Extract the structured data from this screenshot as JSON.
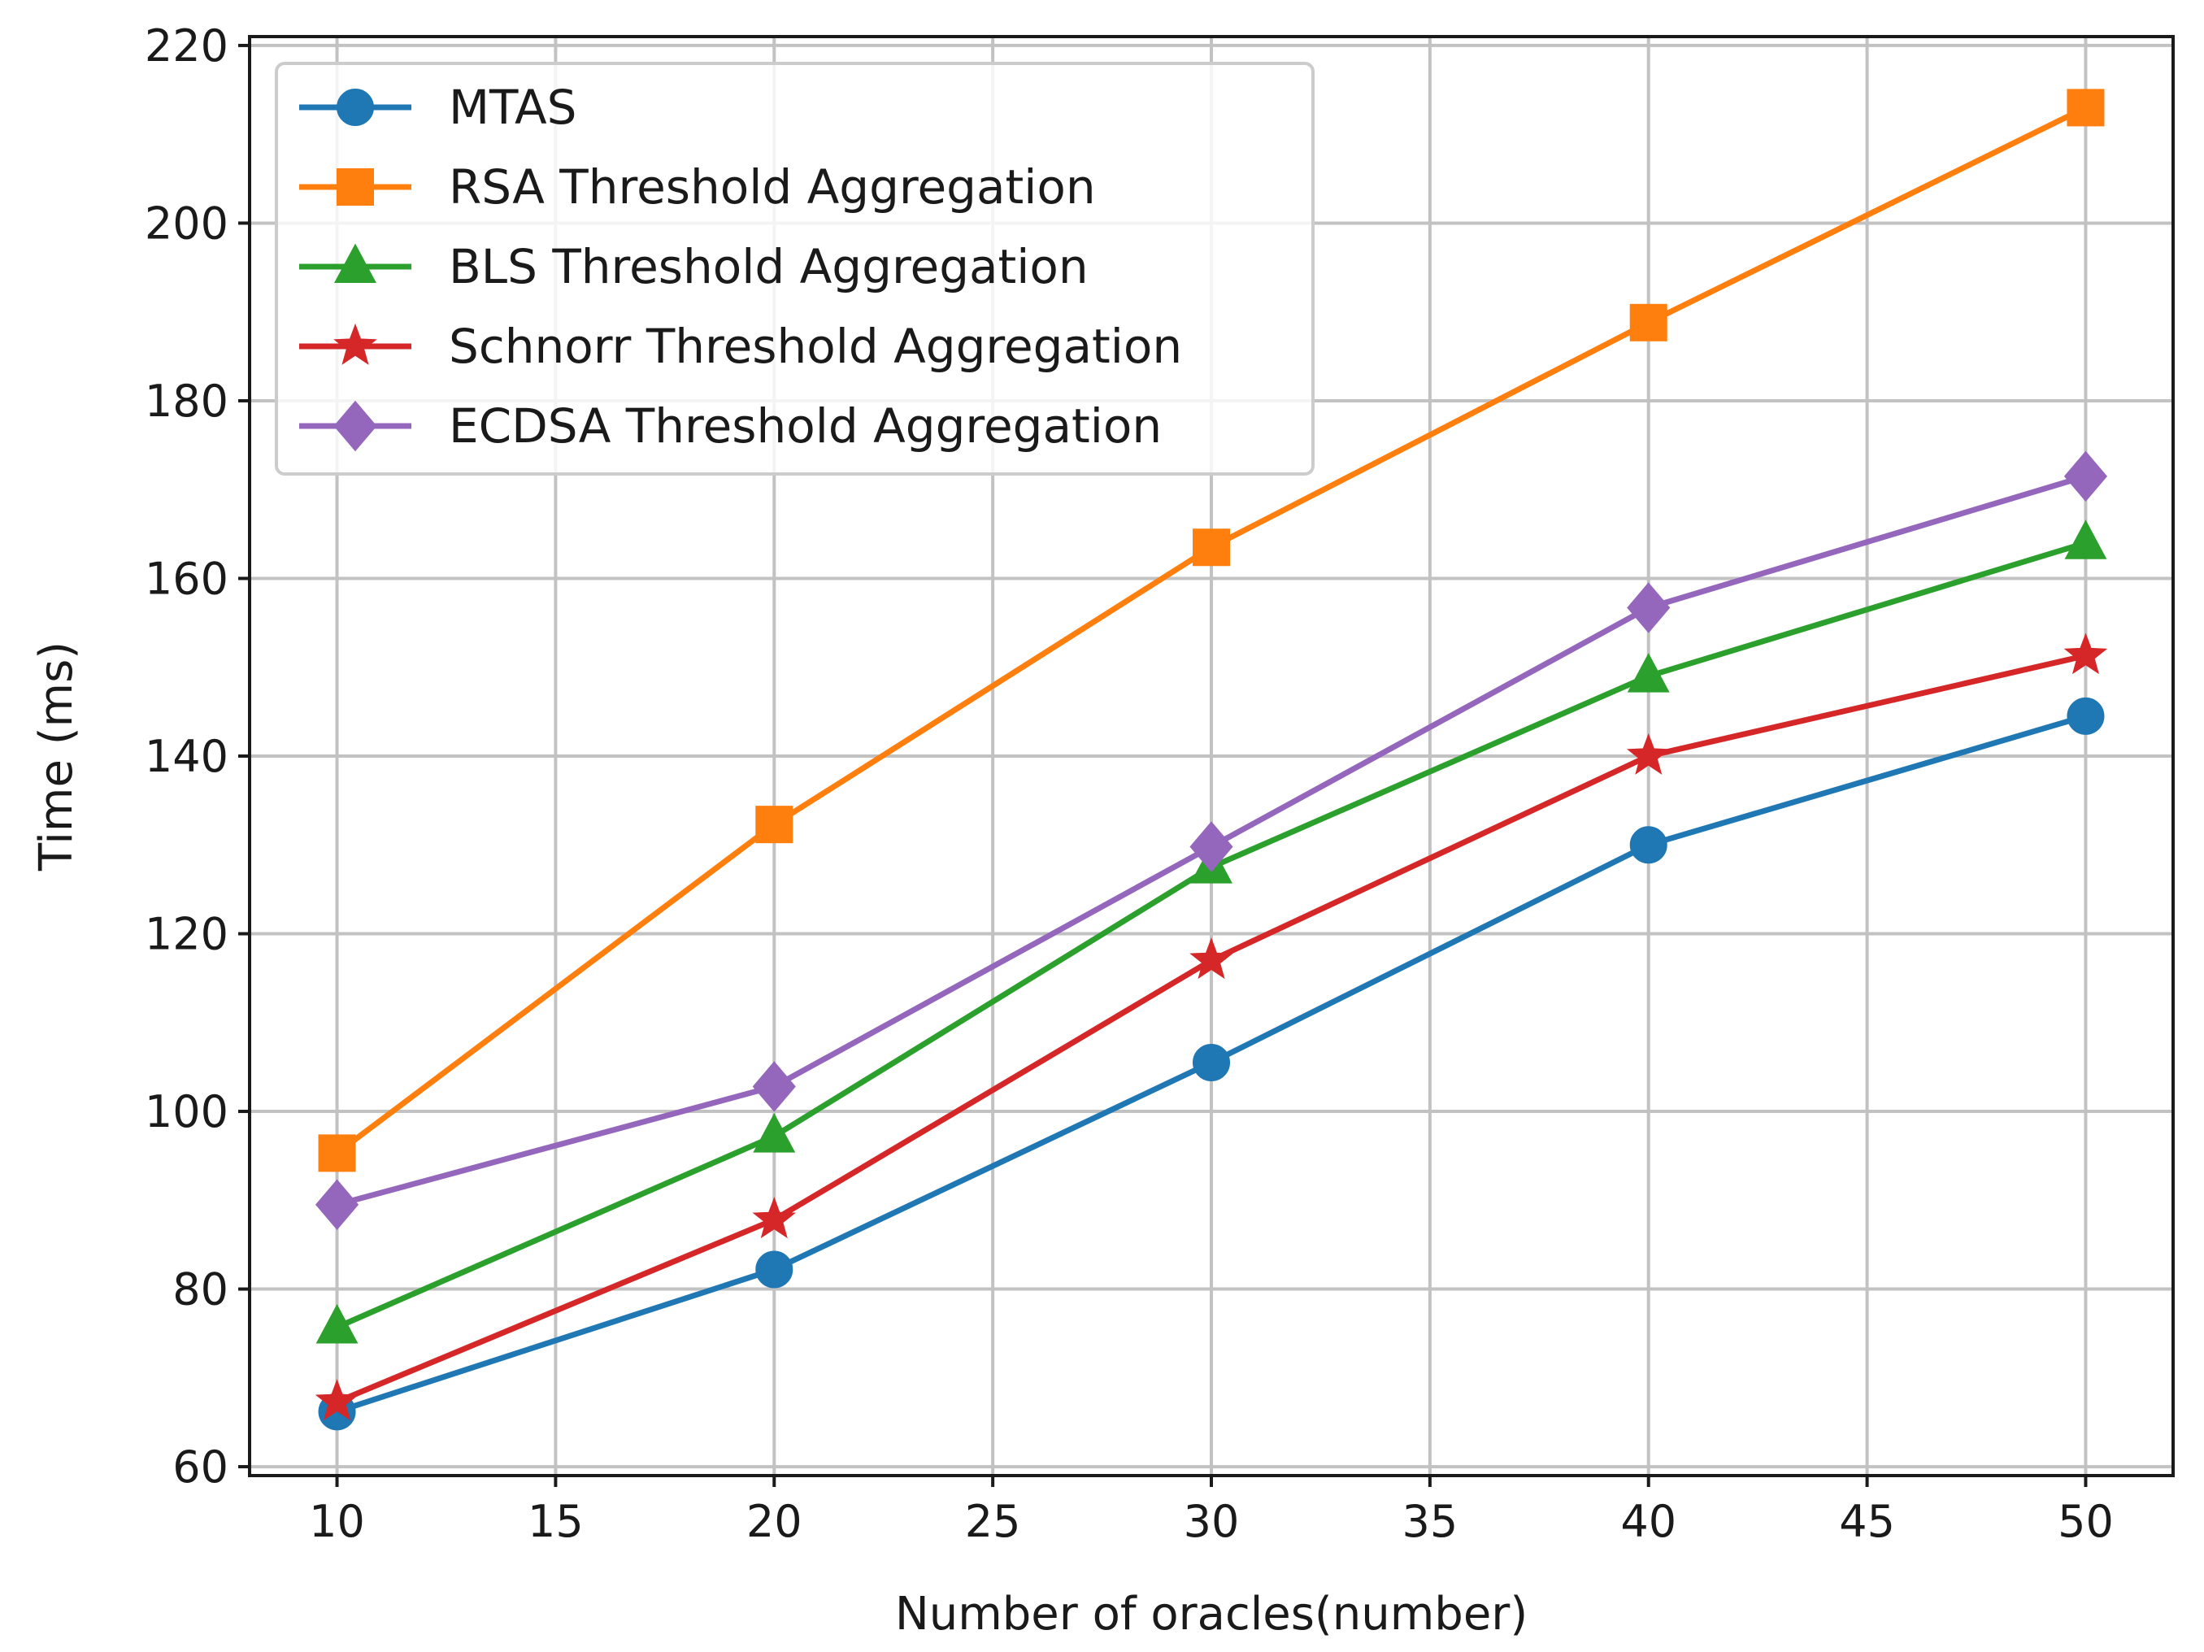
{
  "chart_data": {
    "type": "line",
    "title": "",
    "xlabel": "Number of oracles(number)",
    "ylabel": "Time (ms)",
    "xlim": [
      8,
      52
    ],
    "ylim": [
      59,
      221
    ],
    "xticks": [
      10,
      15,
      20,
      25,
      30,
      35,
      40,
      45,
      50
    ],
    "yticks": [
      60,
      80,
      100,
      120,
      140,
      160,
      180,
      200,
      220
    ],
    "grid": true,
    "legend_position": "top-left",
    "x": [
      10,
      20,
      30,
      40,
      50
    ],
    "series": [
      {
        "name": "MTAS",
        "color": "#1f77b4",
        "marker": "circle",
        "values": [
          66.2,
          82.2,
          105.5,
          130.0,
          144.5
        ]
      },
      {
        "name": "RSA Threshold Aggregation",
        "color": "#ff7f0e",
        "marker": "square",
        "values": [
          95.3,
          132.3,
          163.5,
          188.8,
          213.0
        ]
      },
      {
        "name": "BLS Threshold Aggregation",
        "color": "#2ca02c",
        "marker": "triangle",
        "values": [
          75.7,
          97.2,
          127.5,
          149.0,
          164.0
        ]
      },
      {
        "name": "Schnorr Threshold Aggregation",
        "color": "#d62728",
        "marker": "star",
        "values": [
          67.3,
          87.8,
          117.0,
          140.0,
          151.3
        ]
      },
      {
        "name": "ECDSA Threshold Aggregation",
        "color": "#9467bd",
        "marker": "diamond",
        "values": [
          89.5,
          102.8,
          129.8,
          156.7,
          171.5
        ]
      }
    ]
  }
}
